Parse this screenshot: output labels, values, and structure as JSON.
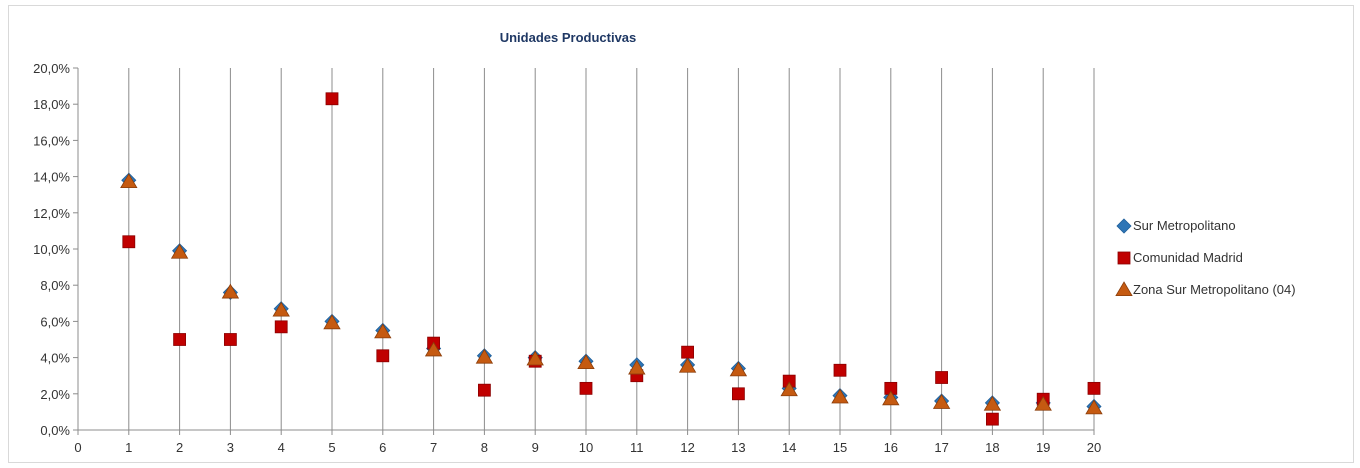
{
  "chart_data": {
    "type": "scatter",
    "title": "Unidades Productivas",
    "xlabel": "",
    "ylabel": "",
    "xlim": [
      0,
      20
    ],
    "ylim": [
      0,
      20
    ],
    "x_ticks": [
      "0",
      "1",
      "2",
      "3",
      "4",
      "5",
      "6",
      "7",
      "8",
      "9",
      "10",
      "11",
      "12",
      "13",
      "14",
      "15",
      "16",
      "17",
      "18",
      "19",
      "20"
    ],
    "y_ticks": [
      "0,0%",
      "2,0%",
      "4,0%",
      "6,0%",
      "8,0%",
      "10,0%",
      "12,0%",
      "14,0%",
      "16,0%",
      "18,0%",
      "20,0%"
    ],
    "grid": "vertical",
    "legend_position": "right",
    "series": [
      {
        "name": "Sur Metropolitano",
        "marker": "diamond",
        "color": "#2e75b6",
        "x": [
          1,
          2,
          3,
          4,
          5,
          6,
          7,
          8,
          9,
          10,
          11,
          12,
          13,
          14,
          15,
          16,
          17,
          18,
          19,
          20
        ],
        "y": [
          13.8,
          9.9,
          7.6,
          6.7,
          6.0,
          5.5,
          4.5,
          4.1,
          4.0,
          3.8,
          3.6,
          3.6,
          3.4,
          2.3,
          1.9,
          1.8,
          1.6,
          1.5,
          1.5,
          1.3
        ]
      },
      {
        "name": "Comunidad Madrid",
        "marker": "square",
        "color": "#c00000",
        "x": [
          1,
          2,
          3,
          4,
          5,
          6,
          7,
          8,
          9,
          10,
          11,
          12,
          13,
          14,
          15,
          16,
          17,
          18,
          19,
          20
        ],
        "y": [
          10.4,
          5.0,
          5.0,
          5.7,
          18.3,
          4.1,
          4.8,
          2.2,
          3.8,
          2.3,
          3.0,
          4.3,
          2.0,
          2.7,
          3.3,
          2.3,
          2.9,
          0.6,
          1.7,
          2.3
        ]
      },
      {
        "name": "Zona Sur Metropolitano (04)",
        "marker": "triangle",
        "color": "#c55a11",
        "x": [
          1,
          2,
          3,
          4,
          5,
          6,
          7,
          8,
          9,
          10,
          11,
          12,
          13,
          14,
          15,
          16,
          17,
          18,
          19,
          20
        ],
        "y": [
          13.7,
          9.8,
          7.6,
          6.6,
          5.9,
          5.4,
          4.4,
          4.0,
          3.9,
          3.7,
          3.4,
          3.5,
          3.3,
          2.2,
          1.8,
          1.7,
          1.5,
          1.4,
          1.4,
          1.2
        ]
      }
    ]
  }
}
